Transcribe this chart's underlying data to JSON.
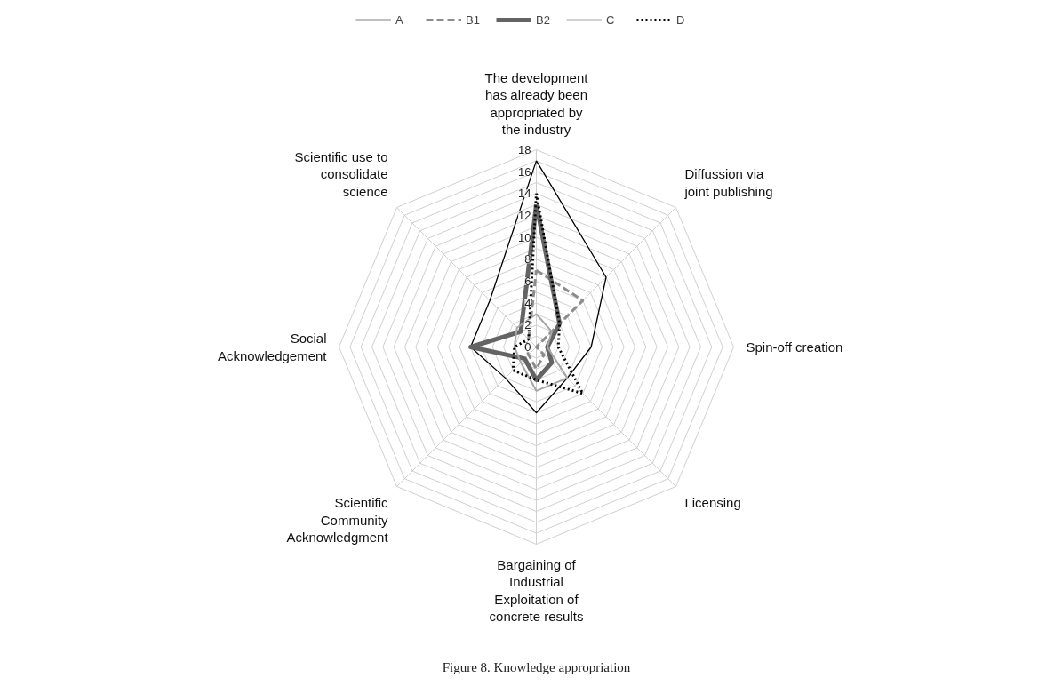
{
  "chart_data": {
    "type": "radar",
    "categories": [
      "The development has already been appropriated by the industry",
      "Diffussion via joint publishing",
      "Spin-off creation",
      "Licensing",
      "Bargaining of Industrial Exploitation of concrete results",
      "Scientific Community Acknowledgment",
      "Social Acknowledgement",
      "Scientific use to consolidate science"
    ],
    "series": [
      {
        "name": "A",
        "color": "#000000",
        "line_style": "solid",
        "values": [
          17,
          9,
          5,
          4,
          6,
          4,
          6,
          6
        ]
      },
      {
        "name": "B1",
        "color": "#8c8c8c",
        "line_style": "dashed",
        "values": [
          7,
          6,
          0,
          1,
          2,
          1,
          1,
          1
        ]
      },
      {
        "name": "B2",
        "color": "#646464",
        "line_style": "solid",
        "values": [
          13,
          3,
          1,
          2,
          3,
          1.5,
          6,
          2
        ]
      },
      {
        "name": "C",
        "color": "#a6a6a6",
        "line_style": "solid",
        "values": [
          3,
          2,
          1,
          4,
          4,
          2,
          2,
          2.5
        ]
      },
      {
        "name": "D",
        "color": "#000000",
        "line_style": "dotted",
        "values": [
          14,
          3,
          2,
          6,
          3,
          3,
          2,
          1
        ]
      }
    ],
    "ylim": [
      0,
      18
    ],
    "yticks": [
      0,
      2,
      4,
      6,
      8,
      10,
      12,
      14,
      16,
      18
    ],
    "grid": true,
    "legend": "top",
    "annotations": [
      "Figure 8. Knowledge appropriation"
    ]
  }
}
